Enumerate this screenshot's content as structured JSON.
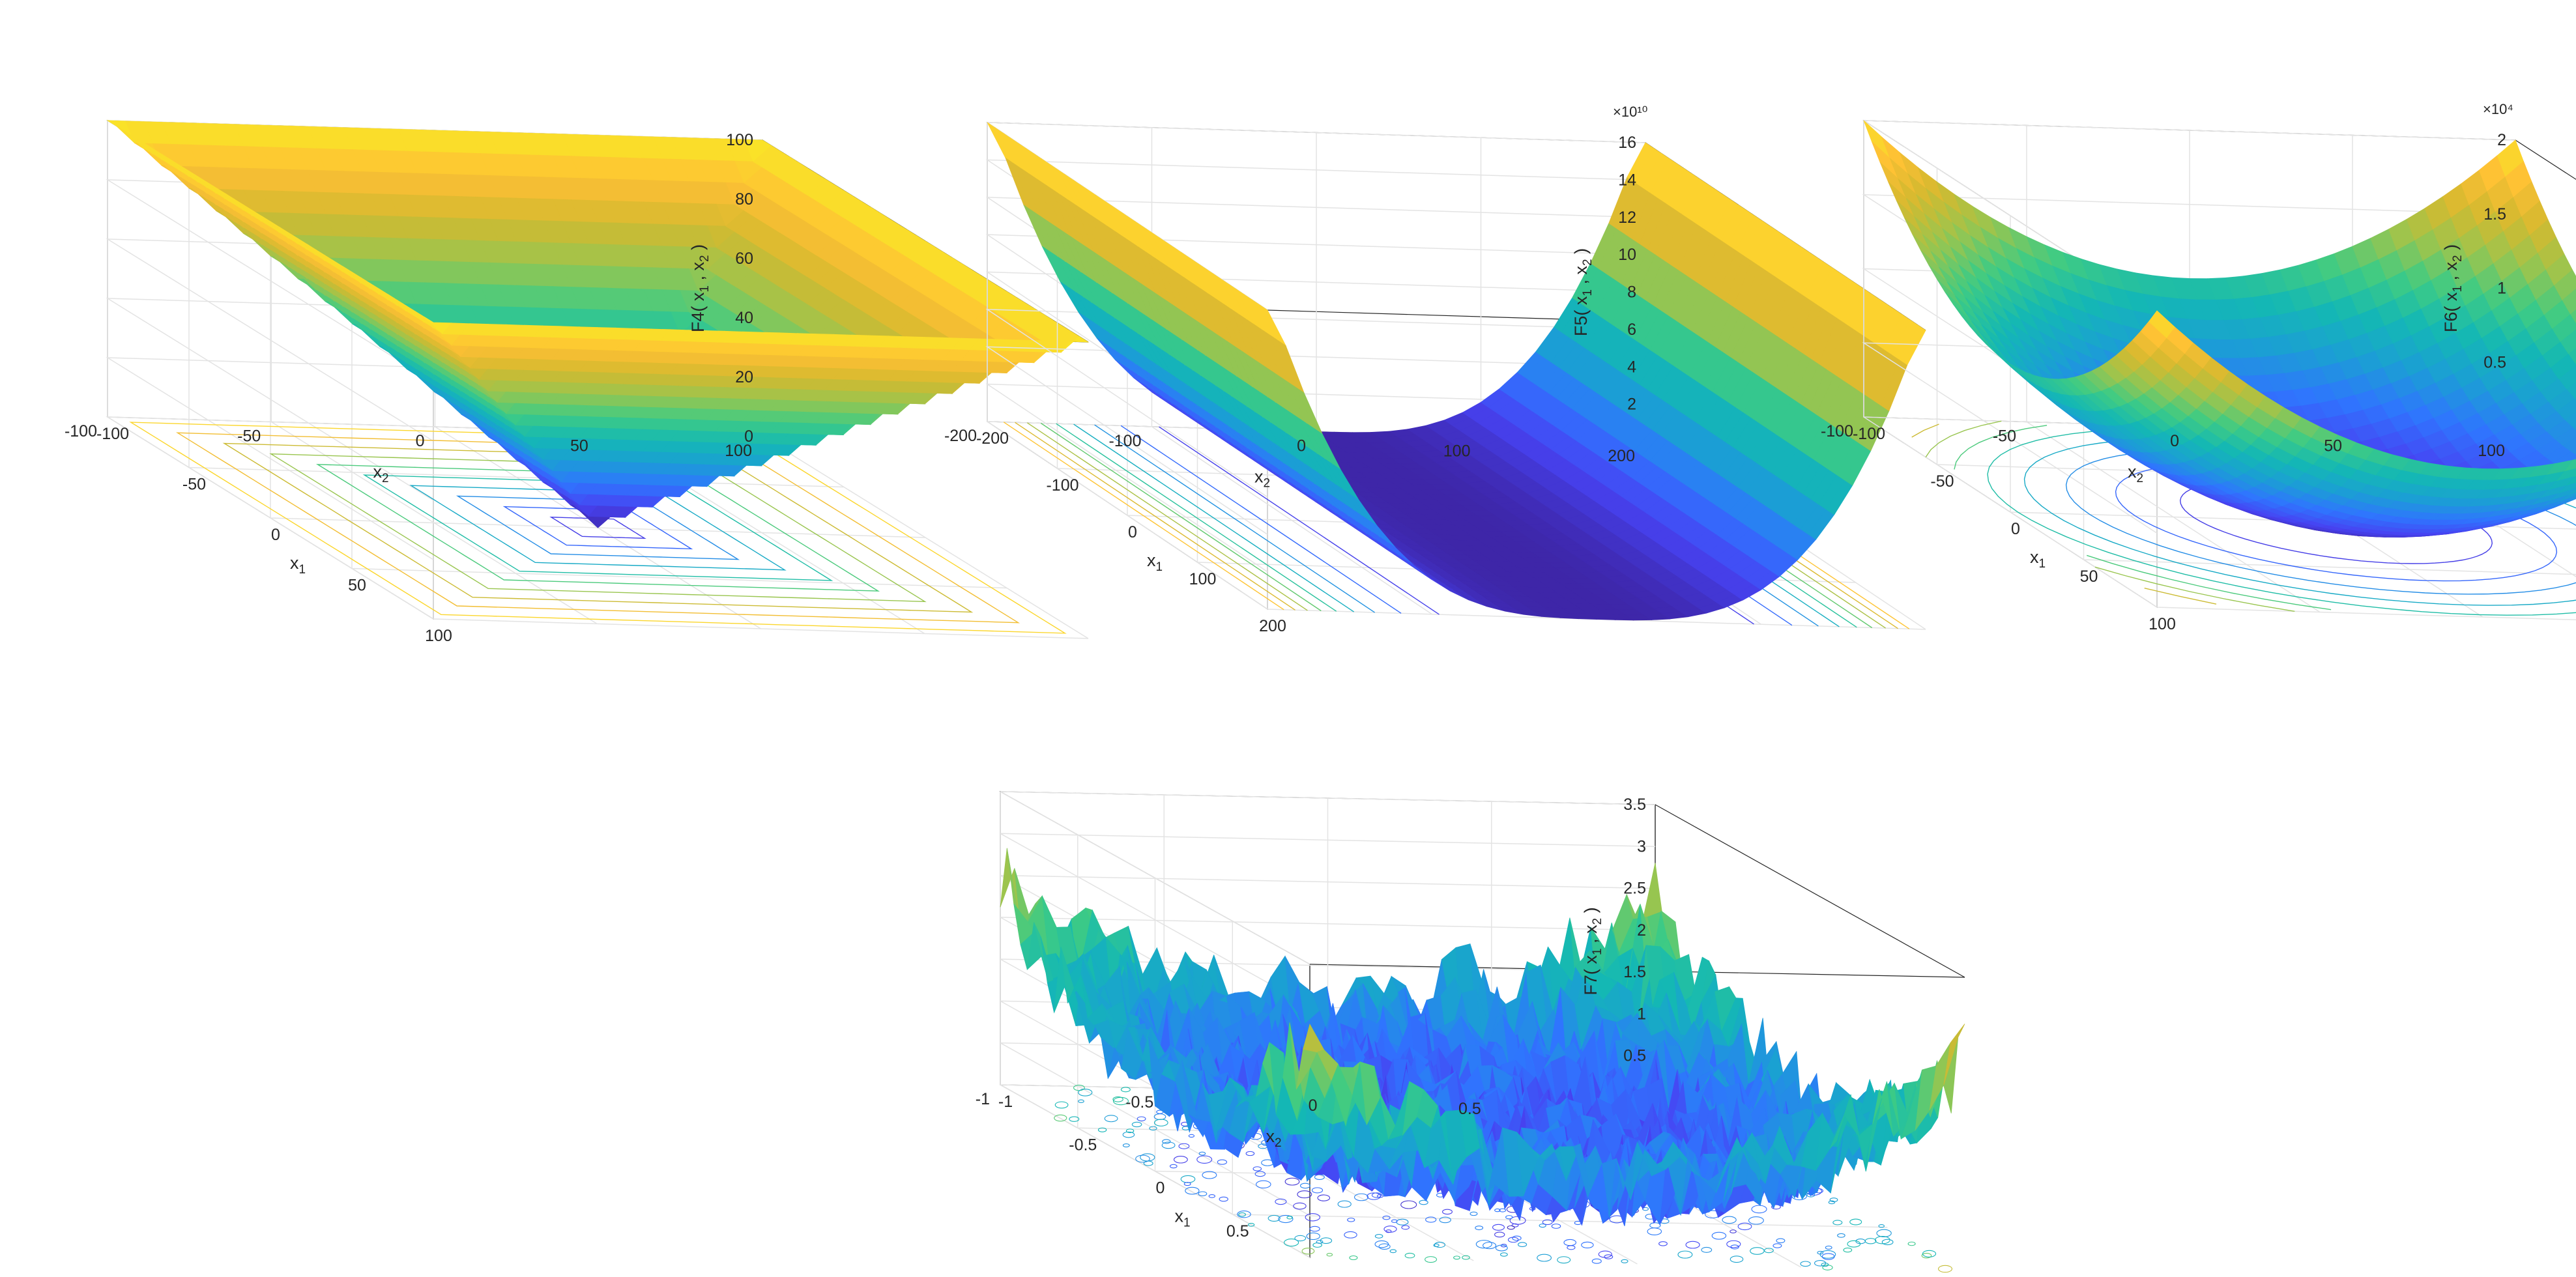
{
  "chart_data": [
    {
      "id": "F4",
      "type": "surface",
      "zlabel": {
        "main": "F4( x",
        "sub1": "1",
        "mid": " , x",
        "sub2": "2",
        "end": " )"
      },
      "xlabel": {
        "main": "x",
        "sub": "1"
      },
      "ylabel": {
        "main": "x",
        "sub": "2"
      },
      "xlim": [
        -100,
        100
      ],
      "ylim": [
        -100,
        100
      ],
      "zlim": [
        0,
        100
      ],
      "xticks": [
        "-100",
        "-50",
        "0",
        "50",
        "100"
      ],
      "yticks": [
        "-100",
        "-50",
        "0",
        "50",
        "100"
      ],
      "zticks": [
        "0",
        "20",
        "40",
        "60",
        "80",
        "100"
      ],
      "z_exponent": "",
      "contour_on_floor": true,
      "shape": "inverted pyramid, z = max(|x1|,|x2|)"
    },
    {
      "id": "F5",
      "type": "surface",
      "zlabel": {
        "main": "F5( x",
        "sub1": "1",
        "mid": " , x",
        "sub2": "2",
        "end": " )"
      },
      "xlabel": {
        "main": "x",
        "sub": "1"
      },
      "ylabel": {
        "main": "x",
        "sub": "2"
      },
      "xlim": [
        -200,
        200
      ],
      "ylim": [
        -200,
        200
      ],
      "zlim": [
        0,
        16
      ],
      "xticks": [
        "-200",
        "-100",
        "0",
        "100",
        "200"
      ],
      "yticks": [
        "-200",
        "-100",
        "0",
        "100",
        "200"
      ],
      "zticks": [
        "2",
        "4",
        "6",
        "8",
        "10",
        "12",
        "14",
        "16"
      ],
      "z_exponent": "×10¹⁰",
      "contour_on_floor": true,
      "shape": "Rosenbrock valley"
    },
    {
      "id": "F6",
      "type": "surface",
      "zlabel": {
        "main": "F6( x",
        "sub1": "1",
        "mid": " , x",
        "sub2": "2",
        "end": " )"
      },
      "xlabel": {
        "main": "x",
        "sub": "1"
      },
      "ylabel": {
        "main": "x",
        "sub": "2"
      },
      "xlim": [
        -100,
        100
      ],
      "ylim": [
        -100,
        100
      ],
      "zlim": [
        0,
        2
      ],
      "xticks": [
        "-100",
        "-50",
        "0",
        "50",
        "100"
      ],
      "yticks": [
        "-100",
        "-50",
        "0",
        "50",
        "100"
      ],
      "zticks": [
        "0.5",
        "1",
        "1.5",
        "2"
      ],
      "z_exponent": "×10⁴",
      "contour_on_floor": true,
      "shape": "paraboloid, z = x1² + x2²"
    },
    {
      "id": "F7",
      "type": "surface",
      "zlabel": {
        "main": "F7( x",
        "sub1": "1",
        "mid": " , x",
        "sub2": "2",
        "end": " )"
      },
      "xlabel": {
        "main": "x",
        "sub": "1"
      },
      "ylabel": {
        "main": "x",
        "sub": "2"
      },
      "xlim": [
        -1,
        1
      ],
      "ylim": [
        -1,
        1
      ],
      "zlim": [
        0,
        3.5
      ],
      "xticks": [
        "-1",
        "-0.5",
        "0",
        "0.5"
      ],
      "yticks": [
        "-1",
        "-0.5",
        "0",
        "0.5"
      ],
      "zticks": [
        "0.5",
        "1",
        "1.5",
        "2",
        "2.5",
        "3",
        "3.5"
      ],
      "z_exponent": "",
      "contour_on_floor": true,
      "shape": "quartic with random noise"
    }
  ],
  "colormap": [
    "#3e26a8",
    "#4743f2",
    "#2f75fe",
    "#1b9fd4",
    "#14b8b4",
    "#3ecb84",
    "#99c54f",
    "#d4b92f",
    "#fec035",
    "#f9e726"
  ]
}
